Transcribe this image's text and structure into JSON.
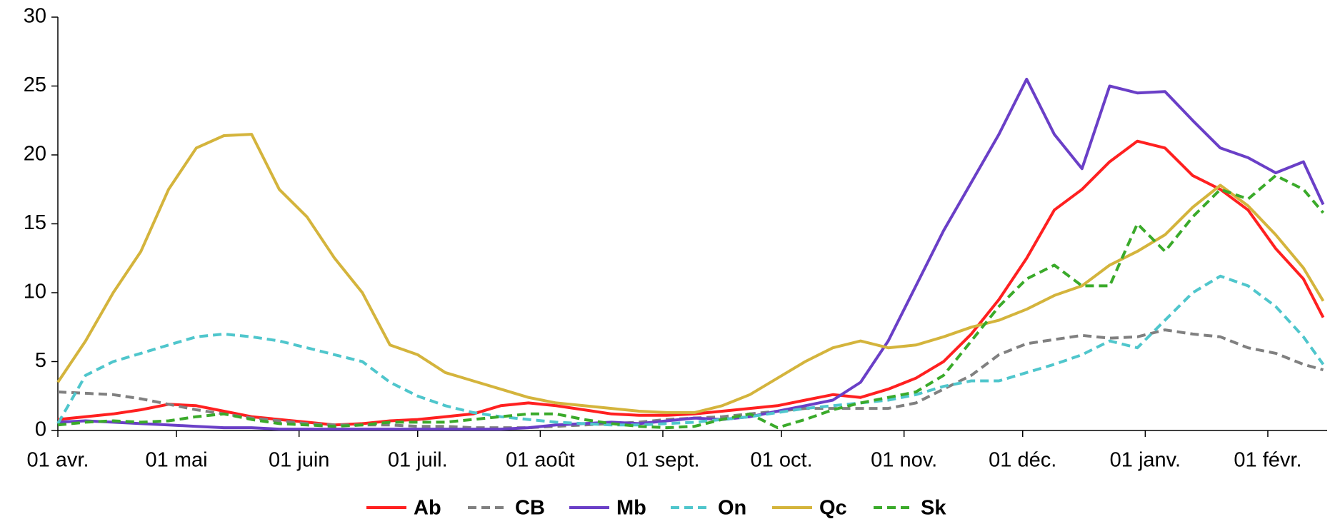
{
  "chart_data": {
    "type": "line",
    "x": [
      0,
      7,
      14,
      21,
      28,
      35,
      42,
      49,
      56,
      63,
      70,
      77,
      84,
      91,
      98,
      105,
      112,
      119,
      126,
      133,
      140,
      147,
      154,
      161,
      168,
      175,
      182,
      189,
      196,
      203,
      210,
      217,
      224,
      231,
      238,
      245,
      252,
      259,
      266,
      273,
      280,
      287,
      294,
      301,
      308,
      315,
      320
    ],
    "xlim": [
      0,
      321
    ],
    "xticks": [
      {
        "value": 0,
        "label": "01 avr."
      },
      {
        "value": 30,
        "label": "01 mai"
      },
      {
        "value": 61,
        "label": "01 juin"
      },
      {
        "value": 91,
        "label": "01 juil."
      },
      {
        "value": 122,
        "label": "01 août"
      },
      {
        "value": 153,
        "label": "01 sept."
      },
      {
        "value": 183,
        "label": "01 oct."
      },
      {
        "value": 214,
        "label": "01 nov."
      },
      {
        "value": 244,
        "label": "01 déc."
      },
      {
        "value": 275,
        "label": "01 janv."
      },
      {
        "value": 306,
        "label": "01 févr."
      }
    ],
    "ylim": [
      0,
      30
    ],
    "yticks": [
      0,
      5,
      10,
      15,
      20,
      25,
      30
    ],
    "legend": "bottom",
    "series": [
      {
        "name": "Ab",
        "color": "#ff2020",
        "style": "solid",
        "values": [
          0.8,
          1.0,
          1.2,
          1.5,
          1.9,
          1.8,
          1.4,
          1.0,
          0.8,
          0.6,
          0.4,
          0.5,
          0.7,
          0.8,
          1.0,
          1.2,
          1.8,
          2.0,
          1.8,
          1.5,
          1.2,
          1.1,
          1.1,
          1.2,
          1.4,
          1.6,
          1.8,
          2.2,
          2.6,
          2.4,
          3.0,
          3.8,
          5.0,
          7.0,
          9.5,
          12.5,
          16.0,
          17.5,
          19.5,
          21.0,
          20.5,
          18.5,
          17.5,
          16.0,
          13.2,
          11.0,
          8.2
        ]
      },
      {
        "name": "CB",
        "color": "#808080",
        "style": "dashed",
        "values": [
          2.8,
          2.7,
          2.6,
          2.3,
          1.9,
          1.5,
          1.2,
          0.9,
          0.7,
          0.5,
          0.4,
          0.4,
          0.4,
          0.3,
          0.3,
          0.2,
          0.2,
          0.2,
          0.3,
          0.4,
          0.5,
          0.6,
          0.8,
          0.9,
          1.0,
          1.2,
          1.4,
          1.6,
          1.6,
          1.6,
          1.6,
          2.0,
          3.0,
          4.0,
          5.5,
          6.3,
          6.6,
          6.9,
          6.7,
          6.8,
          7.3,
          7.0,
          6.8,
          6.0,
          5.6,
          4.8,
          4.4
        ]
      },
      {
        "name": "Mb",
        "color": "#6a3fc7",
        "style": "solid",
        "values": [
          0.6,
          0.7,
          0.6,
          0.5,
          0.4,
          0.3,
          0.2,
          0.2,
          0.1,
          0.1,
          0.1,
          0.1,
          0.1,
          0.1,
          0.1,
          0.1,
          0.1,
          0.2,
          0.4,
          0.5,
          0.6,
          0.5,
          0.7,
          0.9,
          0.8,
          1.0,
          1.4,
          1.8,
          2.2,
          3.5,
          6.5,
          10.5,
          14.5,
          18.0,
          21.5,
          25.5,
          21.5,
          19.0,
          25.0,
          24.5,
          24.6,
          22.5,
          20.5,
          19.8,
          18.7,
          19.5,
          16.4
        ]
      },
      {
        "name": "On",
        "color": "#4fc6cc",
        "style": "dashed",
        "values": [
          0.5,
          4.0,
          5.0,
          5.6,
          6.2,
          6.8,
          7.0,
          6.8,
          6.5,
          6.0,
          5.5,
          5.0,
          3.5,
          2.5,
          1.8,
          1.3,
          1.0,
          0.8,
          0.6,
          0.5,
          0.4,
          0.4,
          0.5,
          0.6,
          0.8,
          1.0,
          1.3,
          1.6,
          1.8,
          2.0,
          2.2,
          2.6,
          3.2,
          3.6,
          3.6,
          4.2,
          4.8,
          5.5,
          6.5,
          6.0,
          8.0,
          10.0,
          11.2,
          10.5,
          9.0,
          6.8,
          4.8
        ]
      },
      {
        "name": "Qc",
        "color": "#d4b43c",
        "style": "solid",
        "values": [
          3.5,
          6.5,
          10.0,
          13.0,
          17.5,
          20.5,
          21.4,
          21.5,
          17.5,
          15.5,
          12.5,
          10.0,
          6.2,
          5.5,
          4.2,
          3.6,
          3.0,
          2.4,
          2.0,
          1.8,
          1.6,
          1.4,
          1.3,
          1.3,
          1.8,
          2.6,
          3.8,
          5.0,
          6.0,
          6.5,
          6.0,
          6.2,
          6.8,
          7.5,
          8.0,
          8.8,
          9.8,
          10.5,
          12.0,
          13.0,
          14.2,
          16.2,
          17.8,
          16.3,
          14.2,
          11.8,
          9.4
        ]
      },
      {
        "name": "Sk",
        "color": "#3aaa2a",
        "style": "dashed",
        "values": [
          0.4,
          0.6,
          0.7,
          0.6,
          0.7,
          1.0,
          1.2,
          0.8,
          0.5,
          0.4,
          0.3,
          0.4,
          0.6,
          0.6,
          0.6,
          0.8,
          1.0,
          1.2,
          1.2,
          0.8,
          0.5,
          0.3,
          0.2,
          0.3,
          0.8,
          1.2,
          0.2,
          0.8,
          1.5,
          2.0,
          2.4,
          2.8,
          4.0,
          6.5,
          9.0,
          11.0,
          12.0,
          10.5,
          10.5,
          15.0,
          13.0,
          15.5,
          17.5,
          16.8,
          18.5,
          17.5,
          15.8
        ]
      }
    ]
  }
}
